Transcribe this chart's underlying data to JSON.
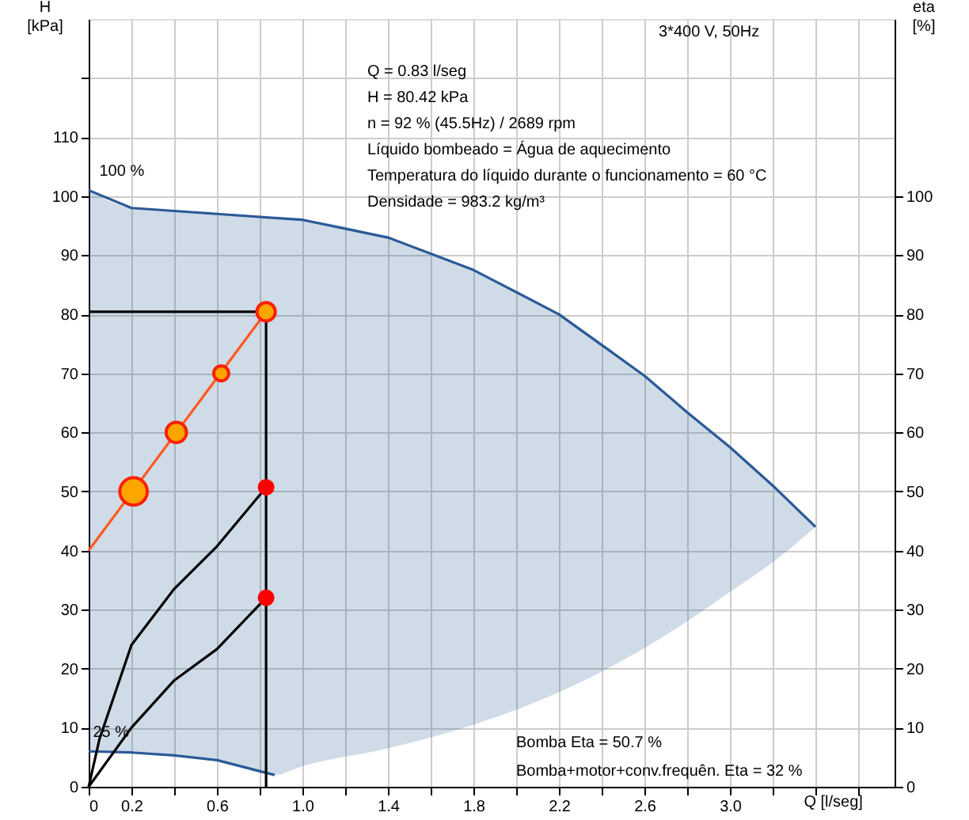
{
  "chart_data": {
    "type": "line",
    "title": "3*400 V, 50Hz",
    "xlabel": "Q [l/seg]",
    "ylabel": "H [kPa]",
    "y2label": "eta [%]",
    "xlim": [
      0,
      3.77
    ],
    "xticks": [
      0,
      0.2,
      {
        "value": 0.4,
        "label": null
      },
      0.6,
      {
        "value": 0.8,
        "label": null
      },
      {
        "value": 1.0,
        "label": "1.0"
      },
      {
        "value": 1.2,
        "label": null
      },
      1.4,
      {
        "value": 1.6,
        "label": null
      },
      1.8,
      {
        "value": 2.0,
        "label": null
      },
      2.2,
      {
        "value": 2.4,
        "label": null
      },
      2.6,
      {
        "value": 2.8,
        "label": null
      },
      {
        "value": 3.0,
        "label": "3.0"
      },
      {
        "value": 3.2,
        "label": null
      },
      {
        "value": 3.4,
        "label": null
      },
      {
        "value": 3.6,
        "label": null
      }
    ],
    "ylim": [
      0,
      130
    ],
    "yticks": [
      0,
      10,
      20,
      30,
      40,
      50,
      60,
      70,
      80,
      90,
      100,
      110,
      {
        "value": 120,
        "label": null
      }
    ],
    "y2lim": [
      0,
      130
    ],
    "y2ticks": [
      0,
      10,
      20,
      30,
      40,
      50,
      60,
      70,
      80,
      90,
      100
    ],
    "grid": true,
    "series": [
      {
        "type": "line",
        "color": "#2a5a96",
        "x": [
          0,
          0.2,
          0.4,
          0.6,
          0.87,
          1.0,
          1.4,
          1.8,
          2.2,
          2.6,
          2.8,
          3.0,
          3.2,
          3.4
        ],
        "values": [
          101,
          98,
          97.5,
          97,
          96.3,
          96,
          93,
          87.5,
          80,
          69.6,
          63.4,
          57.5,
          51,
          44
        ],
        "lower": [
          6,
          5.8,
          5.3,
          4.5,
          2,
          3.5,
          6.5,
          10.5,
          16,
          23.5,
          28,
          33,
          38,
          44
        ],
        "upper": [
          101,
          98,
          97.5,
          97,
          96.3,
          96,
          93,
          87.5,
          80,
          69.6,
          63.4,
          57.5,
          51,
          44
        ]
      },
      {
        "type": "line",
        "color": "#2a5a96",
        "x": [
          0,
          0.2,
          0.4,
          0.6,
          0.87
        ],
        "values": [
          6,
          5.8,
          5.3,
          4.5,
          2
        ]
      },
      {
        "type": "line",
        "color": "#000000",
        "x": [
          0,
          0.83,
          0.83
        ],
        "values": [
          80.42,
          80.42,
          0
        ]
      },
      {
        "type": "line",
        "color": "#ff5a1e",
        "x": [
          0,
          0.83
        ],
        "values": [
          40,
          80.42
        ]
      },
      {
        "type": "bubble",
        "color": "#ffa500",
        "x": [
          0.21,
          0.41,
          0.62,
          0.83
        ],
        "values": [
          50,
          60,
          70,
          80.42
        ],
        "sizes": [
          1,
          0.55,
          0.3,
          0.45
        ]
      },
      {
        "type": "line",
        "axis": "y2",
        "color": "#000000",
        "x": [
          0,
          0.05,
          0.2,
          0.4,
          0.6,
          0.83
        ],
        "values": [
          0,
          8,
          24,
          33.5,
          40.7,
          50.7
        ]
      },
      {
        "type": "line",
        "axis": "y2",
        "color": "#000000",
        "x": [
          0,
          0.2,
          0.4,
          0.6,
          0.83
        ],
        "values": [
          0,
          10,
          18,
          23.3,
          32
        ]
      },
      {
        "type": "scatter",
        "axis": "y2",
        "color": "#ff0000",
        "x": [
          0.83,
          0.83
        ],
        "values": [
          50.7,
          32
        ]
      }
    ],
    "annotations": [
      "Q = 0.83 l/seg",
      "H = 80.42 kPa",
      "n = 92 % (45.5Hz) / 2689 rpm",
      "Líquido bombeado = Água de aquecimento",
      "Temperatura do líquido durante o funcionamento = 60 °C",
      "Densidade = 983.2 kg/m³",
      {
        "text": "100 %",
        "x": 0.05,
        "y": 101
      },
      {
        "text": "25 %",
        "x": 0.02,
        "y": 6
      },
      "Bomba Eta = 50.7 %",
      "Bomba+motor+conv.frequên. Eta = 32 %"
    ]
  }
}
